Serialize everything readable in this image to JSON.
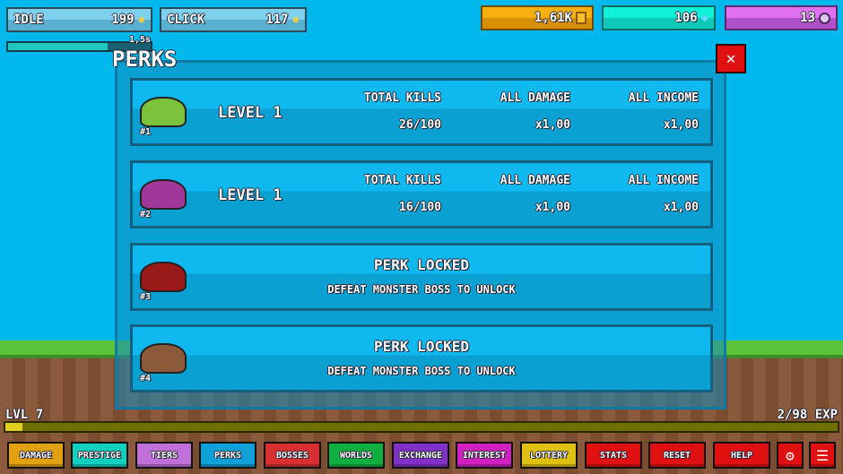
{
  "top": {
    "idle_label": "IDLE",
    "idle_value": "199",
    "click_label": "CLICK",
    "click_value": "117",
    "gold": "1,61K",
    "gems": "106",
    "orbs": "13",
    "timer": "1,5s",
    "timer_progress": 0.7
  },
  "title": "PERKS",
  "perks": [
    {
      "num": "#1",
      "level": "LEVEL 1",
      "h1": "TOTAL KILLS",
      "v1": "26/100",
      "h2": "ALL DAMAGE",
      "v2": "x1,00",
      "h3": "ALL INCOME",
      "v3": "x1,00",
      "color": "#7cc23c"
    },
    {
      "num": "#2",
      "level": "LEVEL 1",
      "h1": "TOTAL KILLS",
      "v1": "16/100",
      "h2": "ALL DAMAGE",
      "v2": "x1,00",
      "h3": "ALL INCOME",
      "v3": "x1,00",
      "color": "#a0389a"
    },
    {
      "num": "#3",
      "locked": "PERK LOCKED",
      "hint": "DEFEAT MONSTER BOSS TO UNLOCK",
      "color": "#9a1a1a"
    },
    {
      "num": "#4",
      "locked": "PERK LOCKED",
      "hint": "DEFEAT MONSTER BOSS TO UNLOCK",
      "color": "#8a5a3a"
    }
  ],
  "level": {
    "label": "LVL 7",
    "exp": "2/98 EXP",
    "progress": 0.02
  },
  "nav": [
    {
      "label": "DAMAGE",
      "color": "#e0a010"
    },
    {
      "label": "PRESTIGE",
      "color": "#10d0c0"
    },
    {
      "label": "TIERS",
      "color": "#c070d8"
    },
    {
      "label": "PERKS",
      "color": "#10a0d8"
    },
    {
      "label": "BOSSES",
      "color": "#d83030"
    },
    {
      "label": "WORLDS",
      "color": "#10b040"
    },
    {
      "label": "EXCHANGE",
      "color": "#8030c8"
    },
    {
      "label": "INTEREST",
      "color": "#d020c0"
    },
    {
      "label": "LOTTERY",
      "color": "#e0c010"
    },
    {
      "label": "STATS",
      "color": "#e01010"
    },
    {
      "label": "RESET",
      "color": "#e01010"
    },
    {
      "label": "HELP",
      "color": "#e01010"
    }
  ]
}
